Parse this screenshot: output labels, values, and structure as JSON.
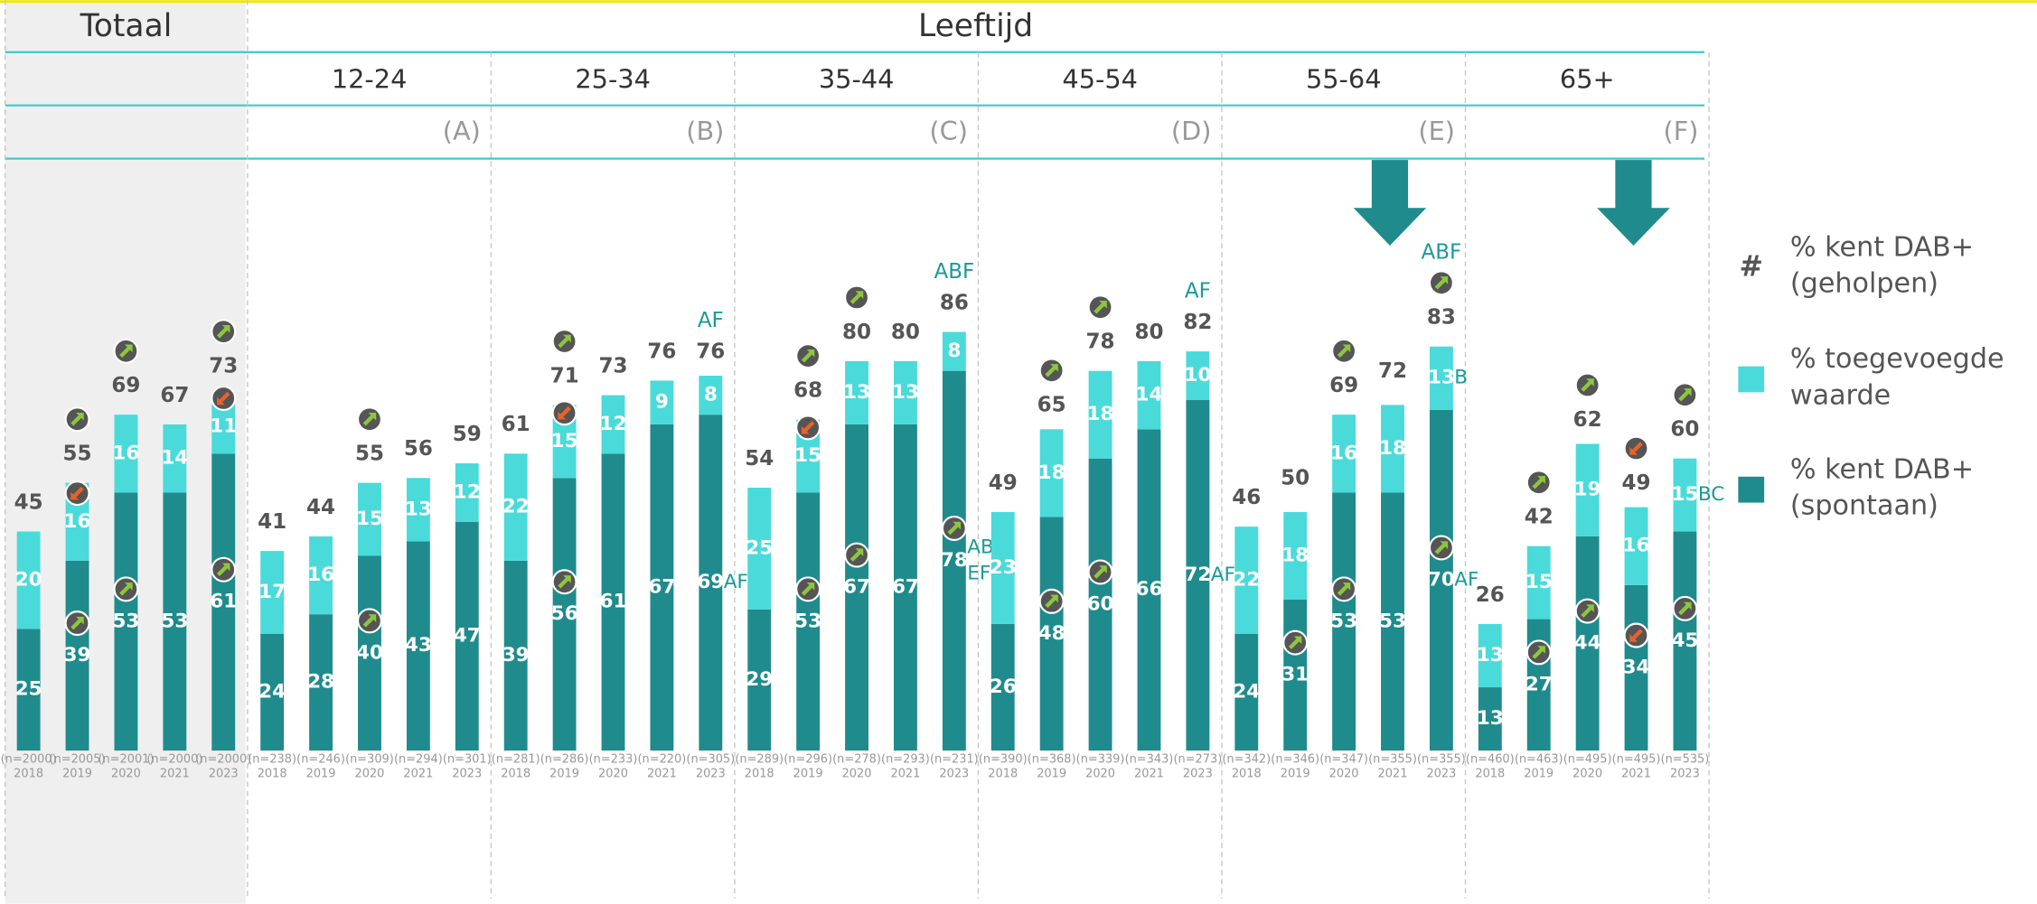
{
  "chart_data": {
    "type": "grouped_stacked_bar",
    "title": "Leeftijd",
    "series": [
      {
        "name": "% kent DAB+ (spontaan)",
        "color": "#1f8b8d"
      },
      {
        "name": "% toegevoegde waarde",
        "color": "#4adada"
      },
      {
        "name": "% kent DAB+ (geholpen)",
        "symbol": "#"
      }
    ],
    "groups": [
      {
        "name": "Totaal",
        "bars": [
          {
            "year": 2018,
            "n": "(n=2000)",
            "values": [
              25,
              20,
              45
            ]
          },
          {
            "year": 2019,
            "n": "(n=2005)",
            "values": [
              39,
              16,
              55
            ],
            "arrows": [
              "up",
              "down",
              "up"
            ]
          },
          {
            "year": 2020,
            "n": "(n=2001)",
            "values": [
              53,
              16,
              69
            ],
            "arrows": [
              "up",
              null,
              "up"
            ]
          },
          {
            "year": 2021,
            "n": "(n=2000)",
            "values": [
              53,
              14,
              67
            ]
          },
          {
            "year": 2023,
            "n": "(n=2000)",
            "values": [
              61,
              11,
              73
            ],
            "arrows": [
              "up",
              "down",
              "up"
            ]
          }
        ]
      },
      {
        "name": "12-24",
        "letter": "(A)",
        "bars": [
          {
            "year": 2018,
            "n": "(n=238)",
            "values": [
              24,
              17,
              41
            ]
          },
          {
            "year": 2019,
            "n": "(n=246)",
            "values": [
              28,
              16,
              44
            ]
          },
          {
            "year": 2020,
            "n": "(n=309)",
            "values": [
              40,
              15,
              55
            ],
            "arrows": [
              "up",
              null,
              "up"
            ]
          },
          {
            "year": 2021,
            "n": "(n=294)",
            "values": [
              43,
              13,
              56
            ]
          },
          {
            "year": 2023,
            "n": "(n=301)",
            "values": [
              47,
              12,
              59
            ]
          }
        ]
      },
      {
        "name": "25-34",
        "letter": "(B)",
        "bars": [
          {
            "year": 2018,
            "n": "(n=281)",
            "values": [
              39,
              22,
              61
            ]
          },
          {
            "year": 2019,
            "n": "(n=286)",
            "values": [
              56,
              15,
              71
            ],
            "arrows": [
              "up",
              "down",
              "up"
            ]
          },
          {
            "year": 2020,
            "n": "(n=233)",
            "values": [
              61,
              12,
              73
            ]
          },
          {
            "year": 2021,
            "n": "(n=220)",
            "values": [
              67,
              9,
              76
            ]
          },
          {
            "year": 2023,
            "n": "(n=305)",
            "values": [
              69,
              8,
              76
            ],
            "sig": [
              [
                "AF"
              ],
              null,
              [
                "AF"
              ]
            ]
          }
        ]
      },
      {
        "name": "35-44",
        "letter": "(C)",
        "bars": [
          {
            "year": 2018,
            "n": "(n=289)",
            "values": [
              29,
              25,
              54
            ]
          },
          {
            "year": 2019,
            "n": "(n=296)",
            "values": [
              53,
              15,
              68
            ],
            "arrows": [
              "up",
              "down",
              "up"
            ]
          },
          {
            "year": 2020,
            "n": "(n=278)",
            "values": [
              67,
              13,
              80
            ],
            "arrows": [
              "up",
              null,
              "up"
            ]
          },
          {
            "year": 2021,
            "n": "(n=293)",
            "values": [
              67,
              13,
              80
            ]
          },
          {
            "year": 2023,
            "n": "(n=231)",
            "values": [
              78,
              8,
              86
            ],
            "arrows": [
              "up",
              null,
              null
            ],
            "sig": [
              [
                "AB",
                "EF"
              ],
              null,
              [
                "ABF"
              ]
            ]
          }
        ]
      },
      {
        "name": "45-54",
        "letter": "(D)",
        "bars": [
          {
            "year": 2018,
            "n": "(n=390)",
            "values": [
              26,
              23,
              49
            ]
          },
          {
            "year": 2019,
            "n": "(n=368)",
            "values": [
              48,
              18,
              65
            ],
            "arrows": [
              "up",
              null,
              "up"
            ]
          },
          {
            "year": 2020,
            "n": "(n=339)",
            "values": [
              60,
              18,
              78
            ],
            "arrows": [
              "up",
              null,
              "up"
            ]
          },
          {
            "year": 2021,
            "n": "(n=343)",
            "values": [
              66,
              14,
              80
            ]
          },
          {
            "year": 2023,
            "n": "(n=273)",
            "values": [
              72,
              10,
              82
            ],
            "sig": [
              [
                "AF"
              ],
              null,
              [
                "AF"
              ]
            ]
          }
        ]
      },
      {
        "name": "55-64",
        "letter": "(E)",
        "highlight": true,
        "bars": [
          {
            "year": 2018,
            "n": "(n=342)",
            "values": [
              24,
              22,
              46
            ]
          },
          {
            "year": 2019,
            "n": "(n=346)",
            "values": [
              31,
              18,
              50
            ],
            "arrows": [
              "up",
              null,
              null
            ]
          },
          {
            "year": 2020,
            "n": "(n=347)",
            "values": [
              53,
              16,
              69
            ],
            "arrows": [
              "up",
              null,
              "up"
            ]
          },
          {
            "year": 2021,
            "n": "(n=355)",
            "values": [
              53,
              18,
              72
            ]
          },
          {
            "year": 2023,
            "n": "(n=355)",
            "values": [
              70,
              13,
              83
            ],
            "arrows": [
              "up",
              null,
              "up"
            ],
            "sig": [
              [
                "AF"
              ],
              [
                "B"
              ],
              [
                "ABF"
              ]
            ]
          }
        ]
      },
      {
        "name": "65+",
        "letter": "(F)",
        "highlight": true,
        "bars": [
          {
            "year": 2018,
            "n": "(n=460)",
            "values": [
              13,
              13,
              26
            ]
          },
          {
            "year": 2019,
            "n": "(n=463)",
            "values": [
              27,
              15,
              42
            ],
            "arrows": [
              "up",
              null,
              "up"
            ]
          },
          {
            "year": 2020,
            "n": "(n=495)",
            "values": [
              44,
              19,
              62
            ],
            "arrows": [
              "up",
              null,
              "up"
            ]
          },
          {
            "year": 2021,
            "n": "(n=495)",
            "values": [
              34,
              16,
              49
            ],
            "arrows": [
              "down",
              null,
              "down"
            ]
          },
          {
            "year": 2023,
            "n": "(n=535)",
            "values": [
              45,
              15,
              60
            ],
            "arrows": [
              "up",
              null,
              "up"
            ],
            "sig": [
              null,
              [
                "BC"
              ],
              null
            ]
          }
        ]
      }
    ]
  }
}
